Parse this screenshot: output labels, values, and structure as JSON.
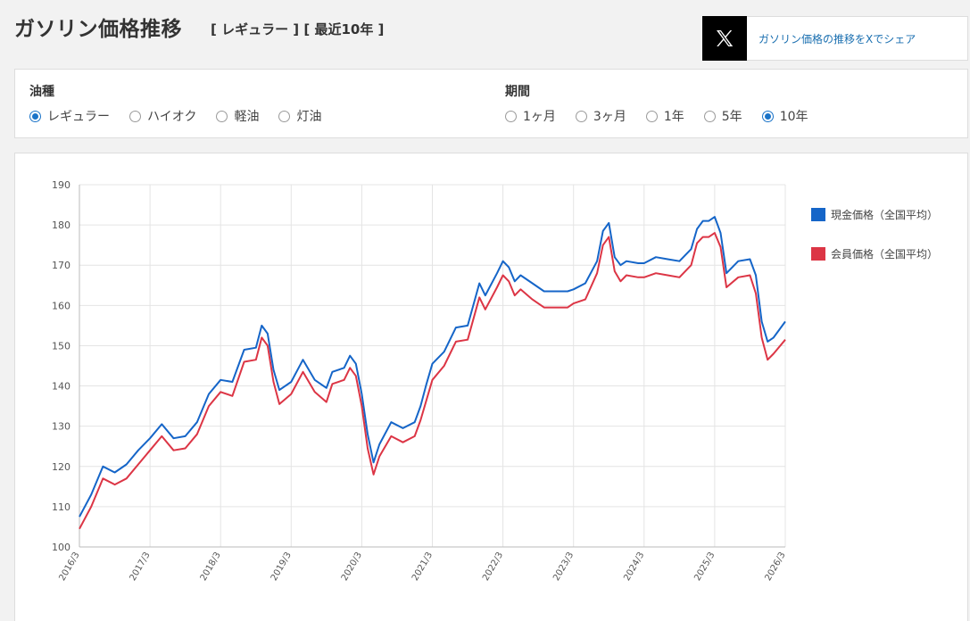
{
  "header": {
    "title": "ガソリン価格推移",
    "subtitle": "[ レギュラー ] [ 最近10年 ]",
    "share_label": "ガソリン価格の推移をXでシェア"
  },
  "filters": {
    "fuel": {
      "heading": "油種",
      "options": [
        {
          "label": "レギュラー",
          "selected": true
        },
        {
          "label": "ハイオク",
          "selected": false
        },
        {
          "label": "軽油",
          "selected": false
        },
        {
          "label": "灯油",
          "selected": false
        }
      ]
    },
    "period": {
      "heading": "期間",
      "options": [
        {
          "label": "1ヶ月",
          "selected": false
        },
        {
          "label": "3ヶ月",
          "selected": false
        },
        {
          "label": "1年",
          "selected": false
        },
        {
          "label": "5年",
          "selected": false
        },
        {
          "label": "10年",
          "selected": true
        }
      ]
    }
  },
  "colors": {
    "cash": "#1565c8",
    "member": "#dc3545",
    "accent": "#1a73c8"
  },
  "chart_data": {
    "type": "line",
    "ylim": [
      100,
      190
    ],
    "yticks": [
      100,
      110,
      120,
      130,
      140,
      150,
      160,
      170,
      180,
      190
    ],
    "x_range": [
      "2016/3",
      "2026/3"
    ],
    "xticks": [
      "2016/3",
      "2017/3",
      "2018/3",
      "2019/3",
      "2020/3",
      "2021/3",
      "2022/3",
      "2023/3",
      "2024/3",
      "2025/3",
      "2026/3"
    ],
    "grid": true,
    "legend_position": "right",
    "series": [
      {
        "name": "現金価格（全国平均）",
        "color": "#1565c8",
        "points": [
          [
            "2016/3",
            107.5
          ],
          [
            "2016/5",
            113
          ],
          [
            "2016/7",
            120
          ],
          [
            "2016/9",
            118.5
          ],
          [
            "2016/11",
            120.5
          ],
          [
            "2017/1",
            124
          ],
          [
            "2017/3",
            127
          ],
          [
            "2017/5",
            130.5
          ],
          [
            "2017/7",
            127
          ],
          [
            "2017/9",
            127.5
          ],
          [
            "2017/11",
            131
          ],
          [
            "2018/1",
            138
          ],
          [
            "2018/3",
            141.5
          ],
          [
            "2018/5",
            141
          ],
          [
            "2018/7",
            149
          ],
          [
            "2018/9",
            149.5
          ],
          [
            "2018/10",
            155
          ],
          [
            "2018/11",
            153
          ],
          [
            "2018/12",
            144
          ],
          [
            "2019/1",
            139
          ],
          [
            "2019/3",
            141
          ],
          [
            "2019/5",
            146.5
          ],
          [
            "2019/7",
            141.5
          ],
          [
            "2019/9",
            139.5
          ],
          [
            "2019/10",
            143.5
          ],
          [
            "2019/12",
            144.5
          ],
          [
            "2020/1",
            147.5
          ],
          [
            "2020/2",
            145.5
          ],
          [
            "2020/3",
            138
          ],
          [
            "2020/4",
            128
          ],
          [
            "2020/5",
            121
          ],
          [
            "2020/6",
            125.5
          ],
          [
            "2020/8",
            131
          ],
          [
            "2020/10",
            129.5
          ],
          [
            "2020/12",
            131
          ],
          [
            "2021/1",
            135
          ],
          [
            "2021/2",
            140.5
          ],
          [
            "2021/3",
            145.5
          ],
          [
            "2021/5",
            148.5
          ],
          [
            "2021/7",
            154.5
          ],
          [
            "2021/9",
            155
          ],
          [
            "2021/11",
            165.5
          ],
          [
            "2021/12",
            162.5
          ],
          [
            "2022/2",
            168
          ],
          [
            "2022/3",
            171
          ],
          [
            "2022/4",
            169.5
          ],
          [
            "2022/5",
            166
          ],
          [
            "2022/6",
            167.5
          ],
          [
            "2022/8",
            165.5
          ],
          [
            "2022/10",
            163.5
          ],
          [
            "2022/12",
            163.5
          ],
          [
            "2023/2",
            163.5
          ],
          [
            "2023/3",
            164
          ],
          [
            "2023/5",
            165.5
          ],
          [
            "2023/7",
            171
          ],
          [
            "2023/8",
            178.5
          ],
          [
            "2023/9",
            180.5
          ],
          [
            "2023/10",
            172
          ],
          [
            "2023/11",
            170
          ],
          [
            "2023/12",
            171
          ],
          [
            "2024/2",
            170.5
          ],
          [
            "2024/3",
            170.5
          ],
          [
            "2024/5",
            172
          ],
          [
            "2024/7",
            171.5
          ],
          [
            "2024/9",
            171
          ],
          [
            "2024/11",
            174
          ],
          [
            "2024/12",
            179
          ],
          [
            "2025/1",
            181
          ],
          [
            "2025/2",
            181
          ],
          [
            "2025/3",
            182
          ],
          [
            "2025/4",
            178
          ],
          [
            "2025/5",
            168
          ],
          [
            "2025/7",
            171
          ],
          [
            "2025/9",
            171.5
          ],
          [
            "2025/10",
            167.5
          ],
          [
            "2025/11",
            156
          ],
          [
            "2025/12",
            151
          ],
          [
            "2026/1",
            152
          ],
          [
            "2026/3",
            156
          ]
        ]
      },
      {
        "name": "会員価格（全国平均）",
        "color": "#dc3545",
        "points": [
          [
            "2016/3",
            104.5
          ],
          [
            "2016/5",
            110
          ],
          [
            "2016/7",
            117
          ],
          [
            "2016/9",
            115.5
          ],
          [
            "2016/11",
            117
          ],
          [
            "2017/1",
            120.5
          ],
          [
            "2017/3",
            124
          ],
          [
            "2017/5",
            127.5
          ],
          [
            "2017/7",
            124
          ],
          [
            "2017/9",
            124.5
          ],
          [
            "2017/11",
            128
          ],
          [
            "2018/1",
            135
          ],
          [
            "2018/3",
            138.5
          ],
          [
            "2018/5",
            137.5
          ],
          [
            "2018/7",
            146
          ],
          [
            "2018/9",
            146.5
          ],
          [
            "2018/10",
            152
          ],
          [
            "2018/11",
            150
          ],
          [
            "2018/12",
            141
          ],
          [
            "2019/1",
            135.5
          ],
          [
            "2019/3",
            138
          ],
          [
            "2019/5",
            143.5
          ],
          [
            "2019/7",
            138.5
          ],
          [
            "2019/9",
            136
          ],
          [
            "2019/10",
            140.5
          ],
          [
            "2019/12",
            141.5
          ],
          [
            "2020/1",
            144.5
          ],
          [
            "2020/2",
            142.5
          ],
          [
            "2020/3",
            135
          ],
          [
            "2020/4",
            124.5
          ],
          [
            "2020/5",
            118
          ],
          [
            "2020/6",
            122.5
          ],
          [
            "2020/8",
            127.5
          ],
          [
            "2020/10",
            126
          ],
          [
            "2020/12",
            127.5
          ],
          [
            "2021/1",
            131.5
          ],
          [
            "2021/2",
            136.5
          ],
          [
            "2021/3",
            141.5
          ],
          [
            "2021/5",
            145
          ],
          [
            "2021/7",
            151
          ],
          [
            "2021/9",
            151.5
          ],
          [
            "2021/11",
            162
          ],
          [
            "2021/12",
            159
          ],
          [
            "2022/2",
            164.5
          ],
          [
            "2022/3",
            167.5
          ],
          [
            "2022/4",
            166
          ],
          [
            "2022/5",
            162.5
          ],
          [
            "2022/6",
            164
          ],
          [
            "2022/8",
            161.5
          ],
          [
            "2022/10",
            159.5
          ],
          [
            "2022/12",
            159.5
          ],
          [
            "2023/2",
            159.5
          ],
          [
            "2023/3",
            160.5
          ],
          [
            "2023/5",
            161.5
          ],
          [
            "2023/7",
            168
          ],
          [
            "2023/8",
            175
          ],
          [
            "2023/9",
            177
          ],
          [
            "2023/10",
            168.5
          ],
          [
            "2023/11",
            166
          ],
          [
            "2023/12",
            167.5
          ],
          [
            "2024/2",
            167
          ],
          [
            "2024/3",
            167
          ],
          [
            "2024/5",
            168
          ],
          [
            "2024/7",
            167.5
          ],
          [
            "2024/9",
            167
          ],
          [
            "2024/11",
            170
          ],
          [
            "2024/12",
            175.5
          ],
          [
            "2025/1",
            177
          ],
          [
            "2025/2",
            177
          ],
          [
            "2025/3",
            178
          ],
          [
            "2025/4",
            174.5
          ],
          [
            "2025/5",
            164.5
          ],
          [
            "2025/7",
            167
          ],
          [
            "2025/9",
            167.5
          ],
          [
            "2025/10",
            163
          ],
          [
            "2025/11",
            152
          ],
          [
            "2025/12",
            146.5
          ],
          [
            "2026/1",
            148
          ],
          [
            "2026/3",
            151.5
          ]
        ]
      }
    ]
  }
}
